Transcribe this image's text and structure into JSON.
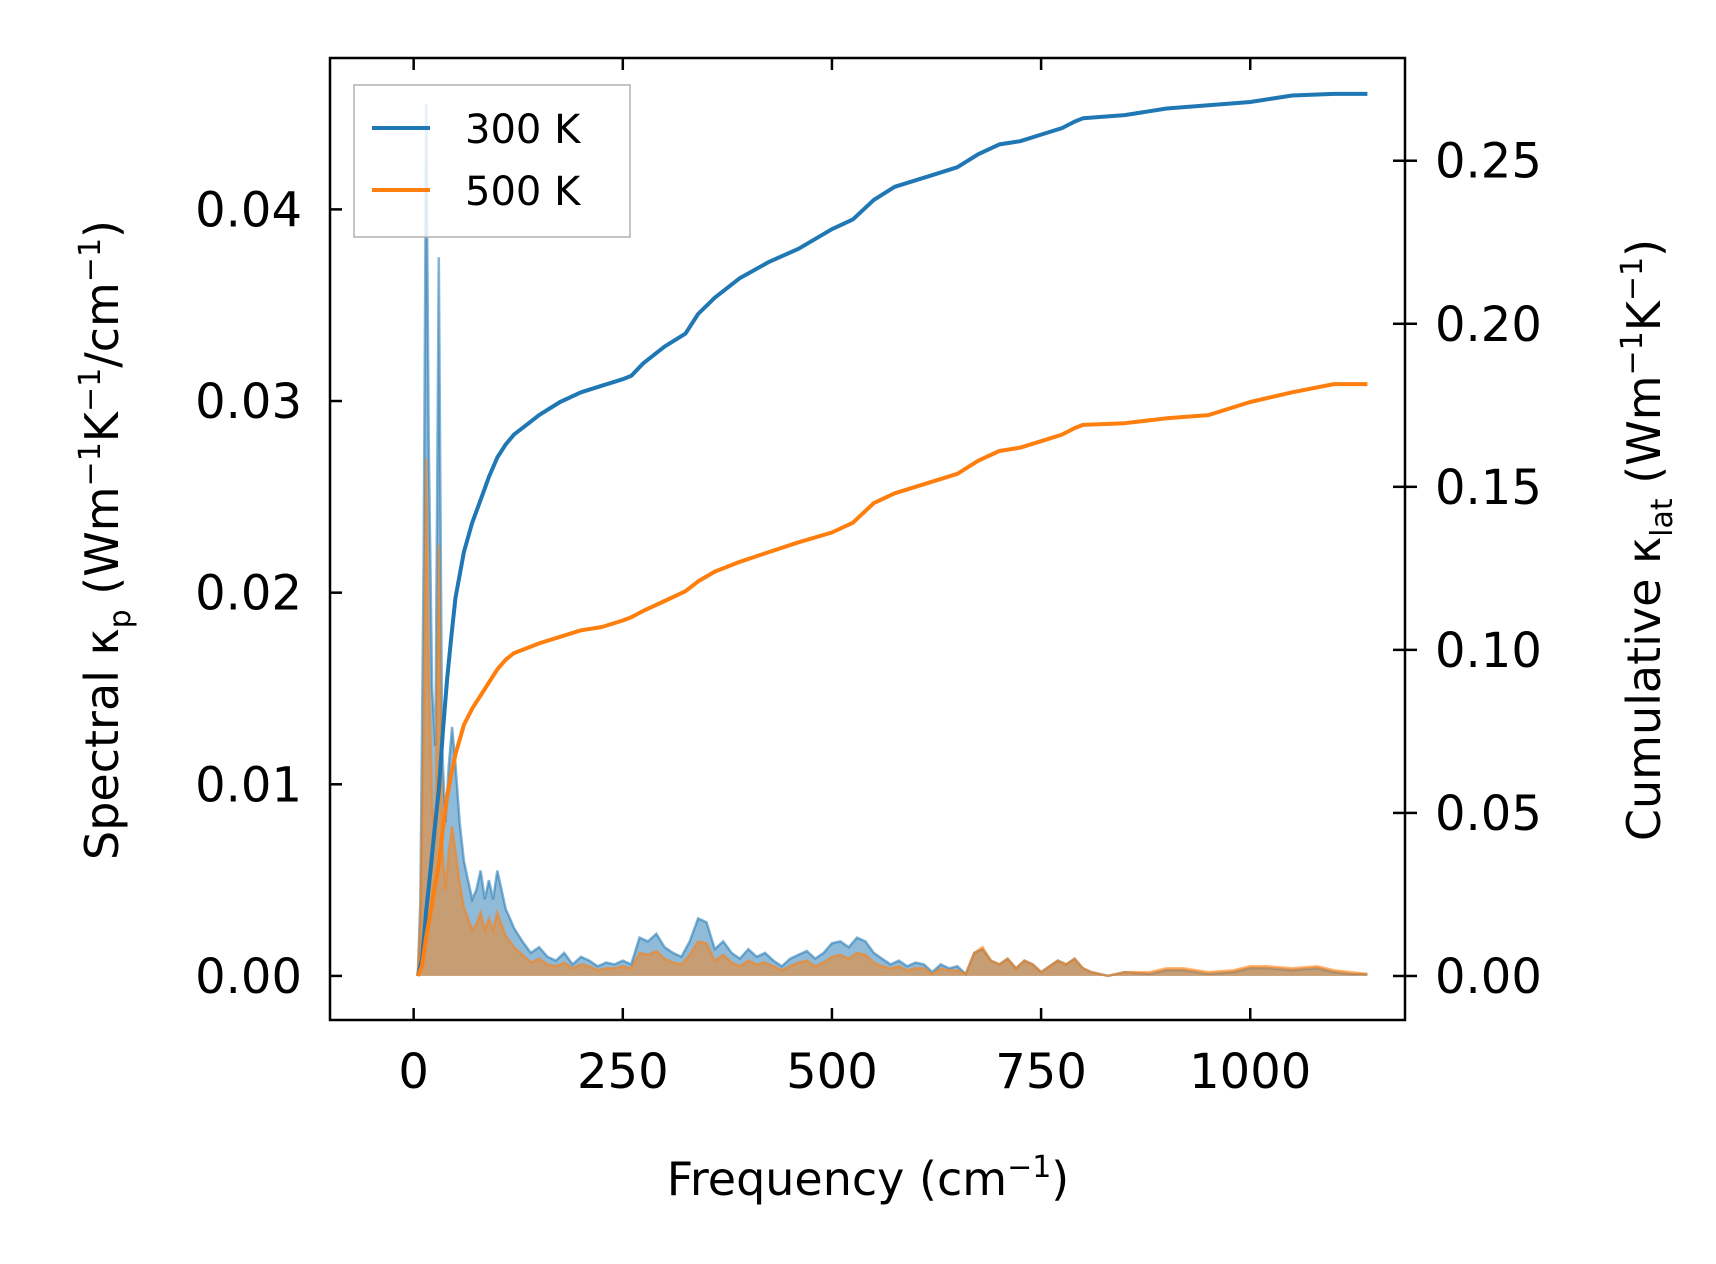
{
  "chart_data": {
    "type": "line",
    "xlabel": {
      "main": "Frequency (cm",
      "sup": "−1",
      "tail": ")"
    },
    "ylabel_left": {
      "pre": "Spectral κ",
      "sub": "p",
      "mid1": " (Wm",
      "sup1": "−1",
      "mid2": "K",
      "sup2": "−1",
      "mid3": "/cm",
      "sup3": "−1",
      "tail": ")"
    },
    "ylabel_right": {
      "pre": "Cumulative κ",
      "sub": "lat",
      "mid1": " (Wm",
      "sup1": "−1",
      "mid2": "K",
      "sup2": "−1",
      "tail": ")"
    },
    "xlim": [
      -100,
      1185
    ],
    "ylim_left": [
      -0.0023,
      0.0479
    ],
    "ylim_right": [
      -0.0135,
      0.2815
    ],
    "x_ticks": [
      0,
      250,
      500,
      750,
      1000
    ],
    "x_tick_labels": [
      "0",
      "250",
      "500",
      "750",
      "1000"
    ],
    "y_left_ticks": [
      0,
      0.01,
      0.02,
      0.03,
      0.04
    ],
    "y_left_tick_labels": [
      "0.00",
      "0.01",
      "0.02",
      "0.03",
      "0.04"
    ],
    "y_right_ticks": [
      0,
      0.05,
      0.1,
      0.15,
      0.2,
      0.25
    ],
    "y_right_tick_labels": [
      "0.00",
      "0.05",
      "0.10",
      "0.15",
      "0.20",
      "0.25"
    ],
    "legend": {
      "placement": "upper-left",
      "entries": [
        "300 K",
        "500 K"
      ]
    },
    "colors": {
      "300K": "#1f77b4",
      "500K": "#ff7f0e"
    },
    "series": [
      {
        "name": "300 K",
        "axis": "right",
        "kind": "cumulative",
        "x": [
          5,
          10,
          15,
          20,
          25,
          30,
          35,
          40,
          45,
          50,
          60,
          70,
          80,
          90,
          100,
          110,
          120,
          130,
          140,
          150,
          175,
          200,
          225,
          250,
          260,
          275,
          300,
          325,
          340,
          360,
          390,
          425,
          460,
          500,
          525,
          550,
          575,
          600,
          625,
          650,
          675,
          700,
          725,
          750,
          775,
          790,
          800,
          850,
          900,
          950,
          1000,
          1050,
          1100,
          1140
        ],
        "y": [
          0.0,
          0.005,
          0.02,
          0.032,
          0.045,
          0.057,
          0.075,
          0.091,
          0.104,
          0.116,
          0.13,
          0.139,
          0.146,
          0.153,
          0.159,
          0.163,
          0.166,
          0.168,
          0.17,
          0.172,
          0.176,
          0.179,
          0.181,
          0.183,
          0.184,
          0.188,
          0.193,
          0.197,
          0.203,
          0.208,
          0.214,
          0.219,
          0.223,
          0.229,
          0.232,
          0.238,
          0.242,
          0.244,
          0.246,
          0.248,
          0.252,
          0.255,
          0.256,
          0.258,
          0.26,
          0.262,
          0.263,
          0.264,
          0.266,
          0.267,
          0.268,
          0.27,
          0.2705,
          0.2705
        ]
      },
      {
        "name": "500 K",
        "axis": "right",
        "kind": "cumulative",
        "x": [
          5,
          10,
          15,
          20,
          25,
          30,
          35,
          40,
          45,
          50,
          60,
          70,
          80,
          90,
          100,
          110,
          120,
          130,
          140,
          150,
          175,
          200,
          225,
          250,
          260,
          275,
          300,
          325,
          340,
          360,
          390,
          425,
          460,
          500,
          525,
          550,
          575,
          600,
          625,
          650,
          675,
          700,
          725,
          750,
          775,
          790,
          800,
          850,
          900,
          950,
          1000,
          1050,
          1100,
          1140
        ],
        "y": [
          0.0,
          0.003,
          0.012,
          0.019,
          0.027,
          0.034,
          0.045,
          0.055,
          0.062,
          0.068,
          0.077,
          0.082,
          0.086,
          0.09,
          0.094,
          0.097,
          0.099,
          0.1,
          0.101,
          0.102,
          0.104,
          0.106,
          0.107,
          0.109,
          0.11,
          0.112,
          0.115,
          0.118,
          0.121,
          0.124,
          0.127,
          0.13,
          0.133,
          0.136,
          0.139,
          0.145,
          0.148,
          0.15,
          0.152,
          0.154,
          0.158,
          0.161,
          0.162,
          0.164,
          0.166,
          0.168,
          0.169,
          0.1695,
          0.171,
          0.172,
          0.176,
          0.179,
          0.1815,
          0.1815
        ]
      },
      {
        "name": "300 K",
        "axis": "left",
        "kind": "spectral",
        "x": [
          5,
          8,
          12,
          15,
          18,
          22,
          26,
          30,
          34,
          38,
          42,
          46,
          50,
          55,
          60,
          65,
          70,
          75,
          80,
          85,
          90,
          95,
          100,
          105,
          110,
          115,
          120,
          130,
          140,
          150,
          160,
          170,
          180,
          190,
          200,
          210,
          220,
          230,
          240,
          250,
          260,
          270,
          280,
          290,
          300,
          310,
          320,
          330,
          340,
          350,
          360,
          370,
          380,
          390,
          400,
          410,
          420,
          430,
          440,
          450,
          460,
          470,
          480,
          490,
          500,
          510,
          520,
          530,
          540,
          550,
          560,
          570,
          580,
          590,
          600,
          610,
          620,
          630,
          640,
          650,
          660,
          670,
          680,
          690,
          700,
          710,
          720,
          730,
          740,
          750,
          760,
          770,
          780,
          790,
          800,
          810,
          820,
          830,
          850,
          880,
          900,
          920,
          950,
          980,
          1000,
          1020,
          1050,
          1080,
          1100,
          1120,
          1140
        ],
        "y": [
          0.0,
          0.004,
          0.022,
          0.0455,
          0.028,
          0.015,
          0.012,
          0.0375,
          0.012,
          0.008,
          0.011,
          0.013,
          0.011,
          0.008,
          0.006,
          0.005,
          0.004,
          0.0045,
          0.0055,
          0.004,
          0.005,
          0.004,
          0.0055,
          0.0045,
          0.0035,
          0.003,
          0.0025,
          0.0018,
          0.0012,
          0.0015,
          0.001,
          0.0008,
          0.0012,
          0.0006,
          0.001,
          0.0008,
          0.0005,
          0.0007,
          0.0006,
          0.0008,
          0.0006,
          0.002,
          0.0018,
          0.0022,
          0.0015,
          0.0012,
          0.001,
          0.0018,
          0.003,
          0.0028,
          0.0014,
          0.0018,
          0.0012,
          0.0009,
          0.0014,
          0.001,
          0.0012,
          0.0008,
          0.0005,
          0.0009,
          0.0011,
          0.0013,
          0.0009,
          0.0012,
          0.0017,
          0.0018,
          0.0015,
          0.002,
          0.0018,
          0.0012,
          0.0009,
          0.0006,
          0.0008,
          0.0005,
          0.0007,
          0.0006,
          0.0002,
          0.0006,
          0.0004,
          0.0005,
          0.0001,
          0.0012,
          0.0014,
          0.0008,
          0.0006,
          0.0009,
          0.0004,
          0.0008,
          0.0006,
          0.0002,
          0.0005,
          0.0008,
          0.0006,
          0.0009,
          0.0004,
          0.0002,
          0.0001,
          0.0,
          0.0002,
          0.0001,
          0.0003,
          0.0003,
          0.0001,
          0.0002,
          0.0004,
          0.0004,
          0.0003,
          0.0004,
          0.0002,
          0.0001,
          0.0001
        ]
      },
      {
        "name": "500 K",
        "axis": "left",
        "kind": "spectral",
        "x": [
          5,
          8,
          12,
          15,
          18,
          22,
          26,
          30,
          34,
          38,
          42,
          46,
          50,
          55,
          60,
          65,
          70,
          75,
          80,
          85,
          90,
          95,
          100,
          105,
          110,
          115,
          120,
          130,
          140,
          150,
          160,
          170,
          180,
          190,
          200,
          210,
          220,
          230,
          240,
          250,
          260,
          270,
          280,
          290,
          300,
          310,
          320,
          330,
          340,
          350,
          360,
          370,
          380,
          390,
          400,
          410,
          420,
          430,
          440,
          450,
          460,
          470,
          480,
          490,
          500,
          510,
          520,
          530,
          540,
          550,
          560,
          570,
          580,
          590,
          600,
          610,
          620,
          630,
          640,
          650,
          660,
          670,
          680,
          690,
          700,
          710,
          720,
          730,
          740,
          750,
          760,
          770,
          780,
          790,
          800,
          810,
          820,
          830,
          850,
          880,
          900,
          920,
          950,
          980,
          1000,
          1020,
          1050,
          1080,
          1100,
          1120,
          1140
        ],
        "y": [
          0.0,
          0.003,
          0.013,
          0.027,
          0.016,
          0.009,
          0.007,
          0.0225,
          0.007,
          0.0045,
          0.0065,
          0.0078,
          0.0065,
          0.0048,
          0.0036,
          0.003,
          0.0024,
          0.0027,
          0.0033,
          0.0024,
          0.003,
          0.0024,
          0.0033,
          0.0027,
          0.0021,
          0.0018,
          0.0015,
          0.0011,
          0.0007,
          0.0009,
          0.0006,
          0.0005,
          0.0007,
          0.0004,
          0.0006,
          0.0005,
          0.0003,
          0.0004,
          0.0004,
          0.0005,
          0.0004,
          0.0012,
          0.0011,
          0.0013,
          0.0009,
          0.0007,
          0.0006,
          0.0011,
          0.0018,
          0.0017,
          0.0008,
          0.0011,
          0.0007,
          0.0005,
          0.0008,
          0.0006,
          0.0007,
          0.0005,
          0.0003,
          0.0005,
          0.0007,
          0.0008,
          0.0005,
          0.0007,
          0.001,
          0.0011,
          0.0009,
          0.0012,
          0.0011,
          0.0007,
          0.0005,
          0.0004,
          0.0005,
          0.0003,
          0.0004,
          0.0004,
          0.0001,
          0.0004,
          0.0003,
          0.0003,
          0.0001,
          0.0012,
          0.0015,
          0.0008,
          0.0006,
          0.0009,
          0.0004,
          0.0008,
          0.0006,
          0.0002,
          0.0005,
          0.0008,
          0.0006,
          0.0009,
          0.0004,
          0.0002,
          0.0001,
          0.0,
          0.0002,
          0.0002,
          0.0004,
          0.0004,
          0.0002,
          0.0003,
          0.0005,
          0.0005,
          0.0004,
          0.0005,
          0.0003,
          0.0002,
          0.0001
        ]
      }
    ]
  }
}
